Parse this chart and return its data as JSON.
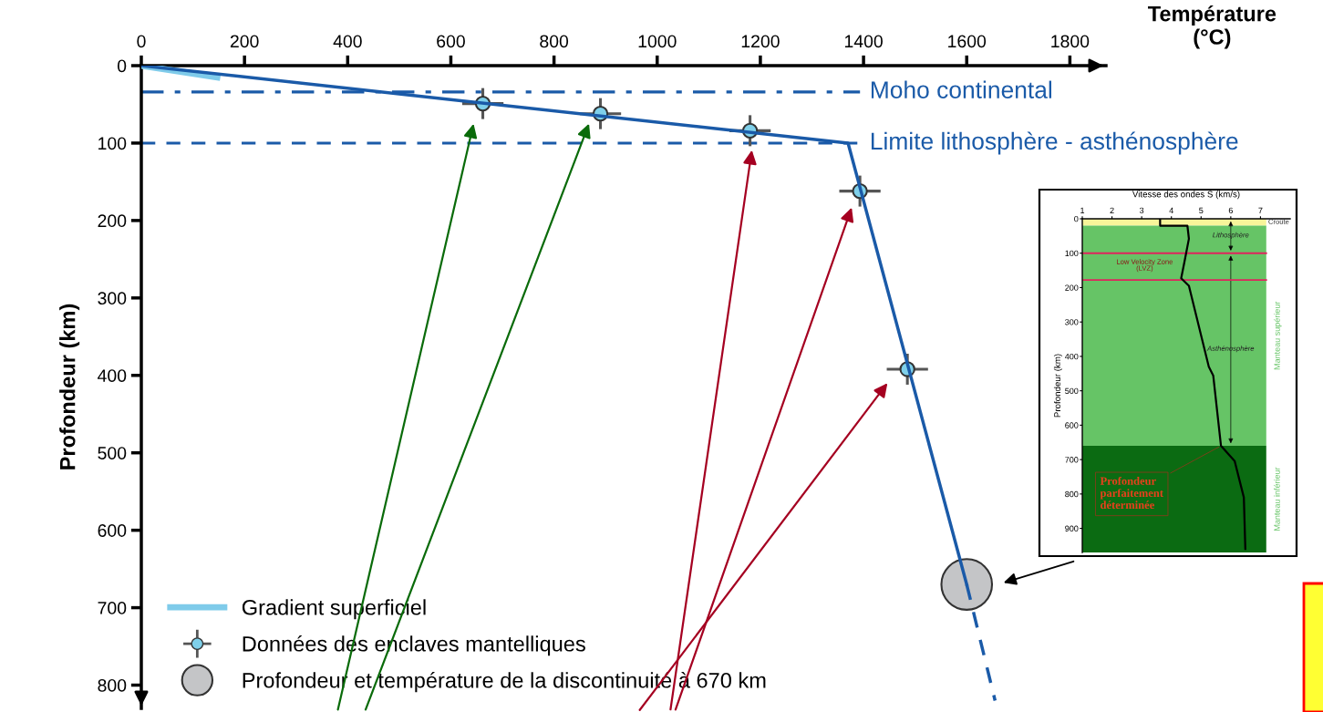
{
  "chart_data": [
    {
      "type": "line",
      "xlabel": "Température\n(°C)",
      "ylabel": "Profondeur (km)",
      "xlim": [
        0,
        1870
      ],
      "xticks": [
        0,
        200,
        400,
        600,
        800,
        1000,
        1200,
        1400,
        1600,
        1800
      ],
      "ylim": [
        830,
        0
      ],
      "yticks": [
        0,
        100,
        200,
        300,
        400,
        500,
        600,
        700,
        800
      ],
      "grid": false,
      "legend": "bottom left",
      "series": [
        {
          "name": "Gradient superficiel",
          "color": "#7fcbea",
          "x": [
            0,
            147
          ],
          "values": [
            0,
            15
          ]
        },
        {
          "color": "#1a5aa8",
          "x": [
            0,
            1370,
            1600
          ],
          "values": [
            0,
            100,
            670
          ]
        },
        {
          "color": "#1a5aa8",
          "line_style": "dashed",
          "x": [
            1600,
            1655
          ],
          "values": [
            670,
            820
          ]
        },
        {
          "name": "Données des enclaves mantelliques",
          "type": "scatter",
          "marker": "circle",
          "color": "#7fd0ea",
          "x": [
            662,
            890,
            1180,
            1393,
            1485
          ],
          "values": [
            49,
            62,
            84,
            162,
            392
          ],
          "errors": [
            20,
            20,
            20,
            20,
            20
          ],
          "xerrors": [
            40,
            40,
            40,
            40,
            40
          ]
        },
        {
          "name": "Profondeur et température de la discontinuité à 670 km",
          "type": "scatter",
          "marker": "circle",
          "color": "#c4c5c7",
          "x": [
            1600
          ],
          "values": [
            670
          ]
        }
      ],
      "ref_lines": [
        {
          "axis": "y",
          "value": 34,
          "label": "Moho continental",
          "color": "#1a5aa8",
          "line_style": "dashdot"
        },
        {
          "axis": "y",
          "value": 100,
          "label": "Limite lithosphère - asthénosphère",
          "color": "#1a5aa8",
          "line_style": "dashed"
        }
      ]
    },
    {
      "type": "line",
      "title": "Vitesse des ondes S (km/s)",
      "ylabel": "Profondeur (km)",
      "xlim": [
        1,
        8
      ],
      "xticks": [
        1,
        2,
        3,
        4,
        5,
        6,
        7
      ],
      "ylim": [
        970,
        0
      ],
      "yticks": [
        0,
        100,
        200,
        300,
        400,
        500,
        600,
        700,
        800,
        900
      ],
      "grid": false,
      "series": [
        {
          "type": "line",
          "color": "#000000",
          "x": [
            3.62,
            3.62,
            4.54,
            4.59,
            4.44,
            4.33,
            4.59,
            5.26,
            5.41,
            5.67,
            6.13,
            6.44,
            6.49
          ],
          "values": [
            0,
            20,
            20,
            58,
            125,
            173,
            195,
            430,
            456,
            660,
            704,
            810,
            960
          ]
        }
      ],
      "bands": [
        {
          "axis": "y",
          "from": 0,
          "to": 20,
          "label": "Croûte",
          "color": "#f7f59a"
        },
        {
          "axis": "y",
          "from": 20,
          "to": 660,
          "label": "Manteau supérieur",
          "color": "#66c466"
        },
        {
          "axis": "y",
          "from": 660,
          "to": 970,
          "label": "Manteau inférieur",
          "color": "#0b6b12"
        }
      ],
      "ref_lines": [
        {
          "axis": "y",
          "value": 100,
          "color": "#e0245e"
        },
        {
          "axis": "y",
          "value": 178,
          "color": "#e0245e"
        }
      ],
      "annotations": [
        "Lithosphère",
        "Low Velocity Zone\n(LVZ)",
        "Asthénosphère",
        {
          "text": "Profondeur\nparfaitement\ndéterminée",
          "x": 5.67,
          "y": 660
        }
      ]
    }
  ]
}
